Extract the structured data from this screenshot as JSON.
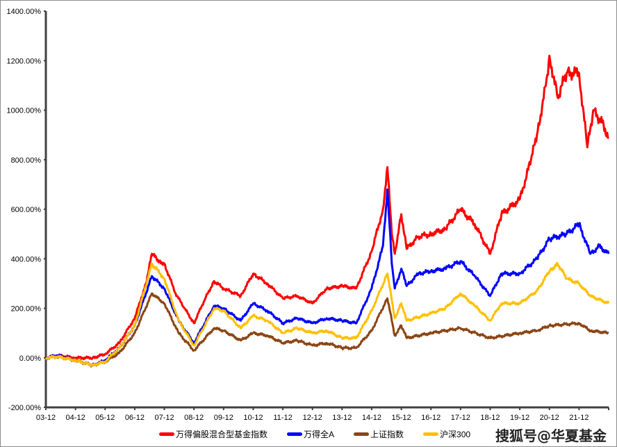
{
  "chart_data": {
    "type": "line",
    "title": "",
    "xlabel": "",
    "ylabel": "",
    "ylim": [
      -200,
      1400
    ],
    "y_ticks": [
      "-200.00%",
      "0.00%",
      "200.00%",
      "400.00%",
      "600.00%",
      "800.00%",
      "1000.00%",
      "1200.00%",
      "1400.00%"
    ],
    "x_ticks": [
      "03-12",
      "04-12",
      "05-12",
      "06-12",
      "07-12",
      "08-12",
      "09-12",
      "10-12",
      "11-12",
      "12-12",
      "13-12",
      "14-12",
      "15-12",
      "16-12",
      "17-12",
      "18-12",
      "19-12",
      "20-12",
      "21-12"
    ],
    "x_range_years": [
      2003.92,
      2022.92
    ],
    "grid": false,
    "legend_position": "bottom",
    "series": [
      {
        "name": "万得偏股混合型基金指数",
        "color": "#ff0000",
        "points": [
          [
            2003.92,
            0
          ],
          [
            2004.3,
            10
          ],
          [
            2004.92,
            0
          ],
          [
            2005.5,
            0
          ],
          [
            2005.92,
            15
          ],
          [
            2006.4,
            60
          ],
          [
            2006.92,
            160
          ],
          [
            2007.3,
            300
          ],
          [
            2007.5,
            420
          ],
          [
            2007.75,
            390
          ],
          [
            2007.92,
            380
          ],
          [
            2008.3,
            260
          ],
          [
            2008.6,
            200
          ],
          [
            2008.92,
            140
          ],
          [
            2009.3,
            240
          ],
          [
            2009.6,
            310
          ],
          [
            2009.92,
            280
          ],
          [
            2010.5,
            250
          ],
          [
            2010.92,
            340
          ],
          [
            2011.4,
            300
          ],
          [
            2011.92,
            240
          ],
          [
            2012.4,
            250
          ],
          [
            2012.92,
            220
          ],
          [
            2013.4,
            280
          ],
          [
            2013.92,
            290
          ],
          [
            2014.4,
            280
          ],
          [
            2014.92,
            430
          ],
          [
            2015.3,
            600
          ],
          [
            2015.45,
            770
          ],
          [
            2015.6,
            500
          ],
          [
            2015.7,
            420
          ],
          [
            2015.92,
            580
          ],
          [
            2016.1,
            440
          ],
          [
            2016.5,
            490
          ],
          [
            2016.92,
            500
          ],
          [
            2017.4,
            520
          ],
          [
            2017.92,
            600
          ],
          [
            2018.4,
            540
          ],
          [
            2018.92,
            420
          ],
          [
            2019.3,
            580
          ],
          [
            2019.92,
            640
          ],
          [
            2020.3,
            800
          ],
          [
            2020.5,
            900
          ],
          [
            2020.8,
            1100
          ],
          [
            2020.92,
            1220
          ],
          [
            2021.2,
            1050
          ],
          [
            2021.5,
            1150
          ],
          [
            2021.92,
            1150
          ],
          [
            2022.2,
            850
          ],
          [
            2022.4,
            1000
          ],
          [
            2022.7,
            950
          ],
          [
            2022.92,
            890
          ]
        ]
      },
      {
        "name": "万得全A",
        "color": "#0000ff",
        "points": [
          [
            2003.92,
            0
          ],
          [
            2004.3,
            10
          ],
          [
            2004.92,
            -10
          ],
          [
            2005.5,
            -30
          ],
          [
            2005.92,
            -10
          ],
          [
            2006.4,
            40
          ],
          [
            2006.92,
            130
          ],
          [
            2007.5,
            330
          ],
          [
            2007.92,
            280
          ],
          [
            2008.4,
            150
          ],
          [
            2008.92,
            60
          ],
          [
            2009.6,
            210
          ],
          [
            2009.92,
            200
          ],
          [
            2010.5,
            150
          ],
          [
            2010.92,
            220
          ],
          [
            2011.4,
            190
          ],
          [
            2011.92,
            140
          ],
          [
            2012.4,
            160
          ],
          [
            2012.92,
            140
          ],
          [
            2013.4,
            160
          ],
          [
            2013.92,
            150
          ],
          [
            2014.4,
            140
          ],
          [
            2014.92,
            280
          ],
          [
            2015.3,
            450
          ],
          [
            2015.45,
            680
          ],
          [
            2015.6,
            380
          ],
          [
            2015.7,
            280
          ],
          [
            2015.92,
            360
          ],
          [
            2016.1,
            290
          ],
          [
            2016.5,
            340
          ],
          [
            2016.92,
            350
          ],
          [
            2017.4,
            360
          ],
          [
            2017.92,
            390
          ],
          [
            2018.4,
            330
          ],
          [
            2018.92,
            250
          ],
          [
            2019.3,
            340
          ],
          [
            2019.92,
            340
          ],
          [
            2020.5,
            400
          ],
          [
            2020.92,
            480
          ],
          [
            2021.5,
            500
          ],
          [
            2021.92,
            540
          ],
          [
            2022.3,
            420
          ],
          [
            2022.6,
            450
          ],
          [
            2022.92,
            420
          ]
        ]
      },
      {
        "name": "上证指数",
        "color": "#8b4513",
        "points": [
          [
            2003.92,
            0
          ],
          [
            2004.3,
            5
          ],
          [
            2004.92,
            -10
          ],
          [
            2005.5,
            -30
          ],
          [
            2005.92,
            -15
          ],
          [
            2006.4,
            20
          ],
          [
            2006.92,
            100
          ],
          [
            2007.5,
            260
          ],
          [
            2007.92,
            220
          ],
          [
            2008.4,
            100
          ],
          [
            2008.92,
            30
          ],
          [
            2009.6,
            120
          ],
          [
            2009.92,
            110
          ],
          [
            2010.5,
            70
          ],
          [
            2010.92,
            100
          ],
          [
            2011.4,
            90
          ],
          [
            2011.92,
            60
          ],
          [
            2012.4,
            70
          ],
          [
            2012.92,
            50
          ],
          [
            2013.4,
            60
          ],
          [
            2013.92,
            40
          ],
          [
            2014.4,
            40
          ],
          [
            2014.92,
            110
          ],
          [
            2015.45,
            240
          ],
          [
            2015.7,
            90
          ],
          [
            2015.92,
            130
          ],
          [
            2016.1,
            80
          ],
          [
            2016.92,
            100
          ],
          [
            2017.92,
            120
          ],
          [
            2018.92,
            80
          ],
          [
            2019.92,
            100
          ],
          [
            2020.5,
            110
          ],
          [
            2020.92,
            130
          ],
          [
            2021.92,
            140
          ],
          [
            2022.3,
            110
          ],
          [
            2022.92,
            100
          ]
        ]
      },
      {
        "name": "沪深300",
        "color": "#ffc000",
        "points": [
          [
            2003.92,
            0
          ],
          [
            2004.3,
            5
          ],
          [
            2004.92,
            -10
          ],
          [
            2005.5,
            -30
          ],
          [
            2005.92,
            -15
          ],
          [
            2006.4,
            40
          ],
          [
            2006.92,
            130
          ],
          [
            2007.5,
            380
          ],
          [
            2007.92,
            320
          ],
          [
            2008.4,
            150
          ],
          [
            2008.92,
            50
          ],
          [
            2009.6,
            200
          ],
          [
            2009.92,
            190
          ],
          [
            2010.5,
            120
          ],
          [
            2010.92,
            170
          ],
          [
            2011.4,
            150
          ],
          [
            2011.92,
            100
          ],
          [
            2012.4,
            120
          ],
          [
            2012.92,
            100
          ],
          [
            2013.4,
            110
          ],
          [
            2013.92,
            80
          ],
          [
            2014.4,
            80
          ],
          [
            2014.92,
            190
          ],
          [
            2015.45,
            340
          ],
          [
            2015.7,
            160
          ],
          [
            2015.92,
            220
          ],
          [
            2016.1,
            150
          ],
          [
            2016.92,
            180
          ],
          [
            2017.4,
            200
          ],
          [
            2017.92,
            260
          ],
          [
            2018.4,
            210
          ],
          [
            2018.92,
            150
          ],
          [
            2019.3,
            220
          ],
          [
            2019.92,
            220
          ],
          [
            2020.5,
            270
          ],
          [
            2020.92,
            350
          ],
          [
            2021.2,
            380
          ],
          [
            2021.5,
            320
          ],
          [
            2021.92,
            300
          ],
          [
            2022.3,
            250
          ],
          [
            2022.92,
            220
          ]
        ]
      }
    ]
  },
  "watermark": "搜狐号@华夏基金"
}
